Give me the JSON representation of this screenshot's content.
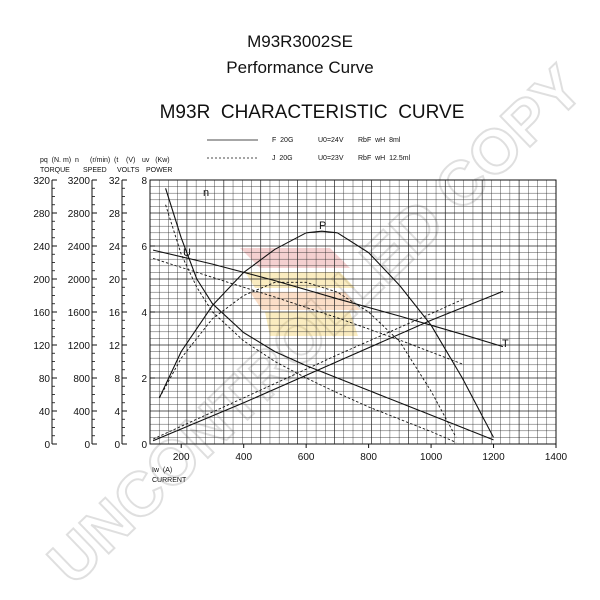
{
  "header": {
    "model": "M93R3002SE",
    "subtitle": "Performance Curve"
  },
  "chart_data": {
    "type": "line",
    "title": "M93R  CHARACTERISTIC  CURVE",
    "legend": [
      {
        "style": "solid",
        "code": "F  20G",
        "voltage": "U0=24V",
        "resistance": "RbF  wH  8ml"
      },
      {
        "style": "dashed",
        "code": "J  20G",
        "voltage": "U0=23V",
        "resistance": "RbF  wH  12.5ml"
      }
    ],
    "x_axis": {
      "label": "Iw  (A)",
      "sublabel": "CURRENT",
      "ticks": [
        "200",
        "400",
        "600",
        "800",
        "1000",
        "1200",
        "1400"
      ],
      "range": [
        100,
        1400
      ]
    },
    "y_axes": [
      {
        "key": "torque",
        "header": "pq  (N. m)  n",
        "label": "TORQUE",
        "ticks": [
          "0",
          "40",
          "80",
          "120",
          "160",
          "200",
          "240",
          "280",
          "320"
        ],
        "range": [
          0,
          320
        ]
      },
      {
        "key": "speed",
        "header": "(r/min)",
        "label": "SPEED",
        "ticks": [
          "0",
          "400",
          "800",
          "1200",
          "1600",
          "2000",
          "2400",
          "2800",
          "3200"
        ],
        "range": [
          0,
          3200
        ]
      },
      {
        "key": "volts",
        "header": "(t    (V)",
        "label": "VOLTS",
        "ticks": [
          "0",
          "4",
          "8",
          "12",
          "16",
          "20",
          "24",
          "28",
          "32"
        ],
        "range": [
          0,
          32
        ]
      },
      {
        "key": "power",
        "header": "uv   (Kw)",
        "label": "POWER",
        "ticks": [
          "0",
          "2",
          "4",
          "6",
          "8"
        ],
        "range": [
          0,
          8
        ]
      }
    ],
    "curve_labels": {
      "speed": "n",
      "power": "P",
      "voltage": "U",
      "torque": "T"
    },
    "series": [
      {
        "name": "n",
        "style": "solid",
        "axis": "speed",
        "x": [
          150,
          200,
          250,
          300,
          400,
          500,
          600,
          700,
          800,
          900,
          1000,
          1100,
          1200
        ],
        "y": [
          3100,
          2500,
          2000,
          1700,
          1350,
          1120,
          950,
          800,
          650,
          500,
          350,
          200,
          50
        ]
      },
      {
        "name": "n",
        "style": "dashed",
        "axis": "speed",
        "x": [
          150,
          200,
          250,
          300,
          400,
          500,
          600,
          700,
          800,
          900,
          1000,
          1080
        ],
        "y": [
          2900,
          2300,
          1900,
          1600,
          1250,
          1000,
          800,
          620,
          450,
          300,
          150,
          20
        ]
      },
      {
        "name": "P",
        "style": "solid",
        "axis": "power",
        "x": [
          130,
          200,
          300,
          400,
          500,
          600,
          650,
          700,
          800,
          900,
          1000,
          1100,
          1200
        ],
        "y": [
          1.4,
          2.8,
          4.2,
          5.2,
          5.9,
          6.4,
          6.45,
          6.4,
          5.8,
          4.8,
          3.6,
          2.0,
          0.2
        ]
      },
      {
        "name": "P",
        "style": "dashed",
        "axis": "power",
        "x": [
          130,
          200,
          300,
          400,
          500,
          600,
          700,
          800,
          900,
          1000,
          1080
        ],
        "y": [
          1.4,
          2.6,
          3.8,
          4.5,
          4.9,
          4.9,
          4.6,
          4.0,
          3.1,
          1.6,
          0.2
        ]
      },
      {
        "name": "U",
        "style": "solid",
        "axis": "volts",
        "x": [
          110,
          300,
          500,
          700,
          900,
          1100,
          1230
        ],
        "y": [
          23.5,
          21.8,
          19.8,
          17.6,
          15.5,
          13.3,
          11.8
        ]
      },
      {
        "name": "U",
        "style": "dashed",
        "axis": "volts",
        "x": [
          110,
          300,
          500,
          700,
          900,
          1100
        ],
        "y": [
          22.5,
          20.2,
          17.8,
          15.3,
          12.6,
          9.7
        ]
      },
      {
        "name": "T",
        "style": "solid",
        "axis": "torque",
        "x": [
          110,
          400,
          700,
          1000,
          1230
        ],
        "y": [
          4,
          50,
          100,
          150,
          185
        ]
      },
      {
        "name": "T",
        "style": "dashed",
        "axis": "torque",
        "x": [
          110,
          400,
          700,
          1000,
          1100
        ],
        "y": [
          6,
          56,
          108,
          158,
          175
        ]
      }
    ]
  }
}
